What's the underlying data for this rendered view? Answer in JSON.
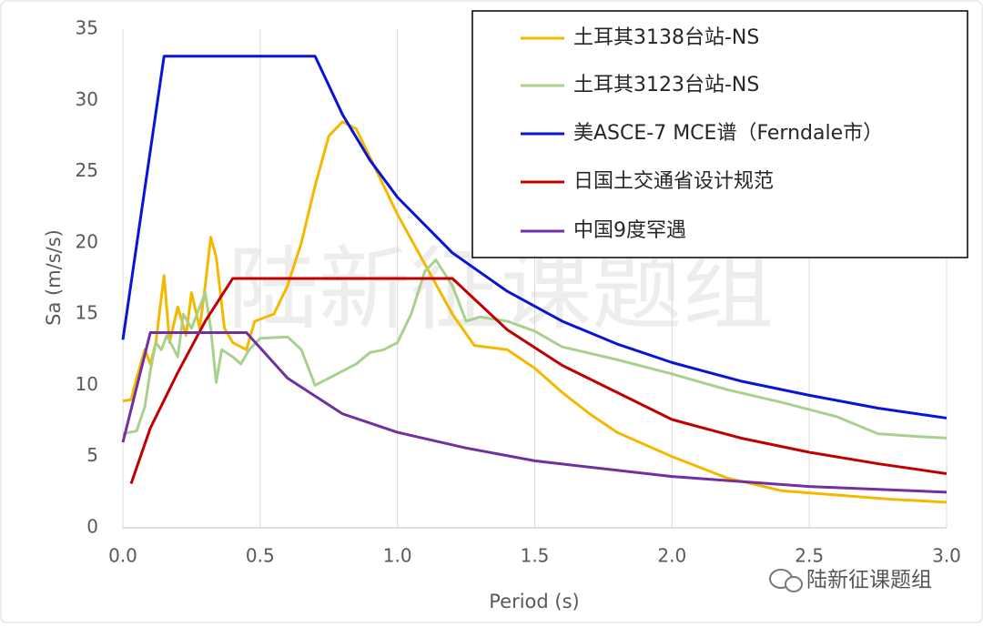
{
  "chart_data": {
    "type": "line",
    "x_label": "Period (s)",
    "y_label": "Sa (m/s/s)",
    "xlim": [
      0,
      3
    ],
    "ylim": [
      0,
      35
    ],
    "xticks": [
      {
        "value": 0,
        "label": "0.0"
      },
      0.5,
      {
        "value": 1,
        "label": "1.0"
      },
      1.5,
      {
        "value": 2,
        "label": "2.0"
      },
      2.5,
      {
        "value": 3,
        "label": "3.0"
      }
    ],
    "yticks": [
      0,
      5,
      10,
      15,
      20,
      25,
      30,
      35
    ],
    "grid": true,
    "legend": "top-right",
    "series": [
      {
        "name": "土耳其3138台站-NS",
        "color": "#f5b800",
        "x": [
          0,
          0.03,
          0.05,
          0.08,
          0.1,
          0.12,
          0.15,
          0.17,
          0.2,
          0.23,
          0.25,
          0.28,
          0.3,
          0.32,
          0.34,
          0.37,
          0.4,
          0.45,
          0.48,
          0.55,
          0.6,
          0.65,
          0.7,
          0.75,
          0.8,
          0.85,
          0.9,
          1.0,
          1.1,
          1.2,
          1.28,
          1.4,
          1.5,
          1.6,
          1.7,
          1.8,
          2.0,
          2.2,
          2.4,
          2.6,
          2.8,
          3.0
        ],
        "values": [
          8.9,
          9.0,
          10.5,
          12.5,
          11.5,
          13,
          17.7,
          13,
          15.5,
          13.5,
          16.5,
          14,
          17,
          20.4,
          19,
          14,
          13,
          12.5,
          14.5,
          15,
          17,
          20,
          24,
          27.5,
          28.5,
          28,
          26,
          22,
          18.5,
          15,
          12.8,
          12.5,
          11.2,
          9.5,
          8,
          6.7,
          5,
          3.5,
          2.6,
          2.3,
          2.0,
          1.8
        ]
      },
      {
        "name": "土耳其3123台站-NS",
        "color": "#a9d18e",
        "x": [
          0,
          0.05,
          0.08,
          0.1,
          0.12,
          0.14,
          0.16,
          0.2,
          0.22,
          0.25,
          0.28,
          0.3,
          0.32,
          0.34,
          0.36,
          0.4,
          0.43,
          0.46,
          0.5,
          0.6,
          0.65,
          0.7,
          0.75,
          0.8,
          0.85,
          0.9,
          0.95,
          1.0,
          1.05,
          1.1,
          1.14,
          1.2,
          1.25,
          1.3,
          1.4,
          1.5,
          1.6,
          1.8,
          2.0,
          2.2,
          2.4,
          2.6,
          2.75,
          2.9,
          3.0
        ],
        "values": [
          6.6,
          6.8,
          8.5,
          11,
          13,
          12.5,
          13.5,
          12,
          15,
          14,
          15.5,
          16.5,
          14,
          10.2,
          12.5,
          12,
          11.5,
          12.5,
          13.3,
          13.4,
          12.5,
          10,
          10.5,
          11,
          11.5,
          12.3,
          12.5,
          13,
          15,
          18,
          18.8,
          17,
          14.5,
          14.8,
          14.5,
          13.8,
          12.7,
          11.8,
          10.8,
          9.7,
          8.8,
          7.8,
          6.6,
          6.4,
          6.3
        ]
      },
      {
        "name": "美ASCE-7 MCE谱（Ferndale市）",
        "color": "#0b14d6",
        "x": [
          0,
          0.15,
          0.7,
          0.8,
          0.9,
          1.0,
          1.2,
          1.4,
          1.6,
          1.8,
          2.0,
          2.25,
          2.5,
          2.75,
          3.0
        ],
        "values": [
          13.2,
          33.1,
          33.1,
          29.0,
          25.8,
          23.2,
          19.3,
          16.6,
          14.5,
          12.9,
          11.6,
          10.3,
          9.3,
          8.4,
          7.7
        ]
      },
      {
        "name": "日国土交通省设计规范",
        "color": "#c00000",
        "x": [
          0.03,
          0.1,
          0.2,
          0.3,
          0.4,
          1.2,
          1.4,
          1.6,
          1.8,
          2.0,
          2.25,
          2.5,
          2.75,
          3.0
        ],
        "values": [
          3.1,
          7.0,
          10.9,
          14.5,
          17.5,
          17.5,
          13.9,
          11.4,
          9.5,
          7.6,
          6.3,
          5.3,
          4.5,
          3.8
        ]
      },
      {
        "name": "中国9度罕遇",
        "color": "#7030a0",
        "x": [
          0,
          0.1,
          0.45,
          0.6,
          0.8,
          1.0,
          1.25,
          1.5,
          2.0,
          2.5,
          3.0
        ],
        "values": [
          6.0,
          13.7,
          13.7,
          10.5,
          8.0,
          6.7,
          5.6,
          4.7,
          3.6,
          2.9,
          2.5
        ]
      }
    ]
  },
  "watermark": "陆新征课题组"
}
